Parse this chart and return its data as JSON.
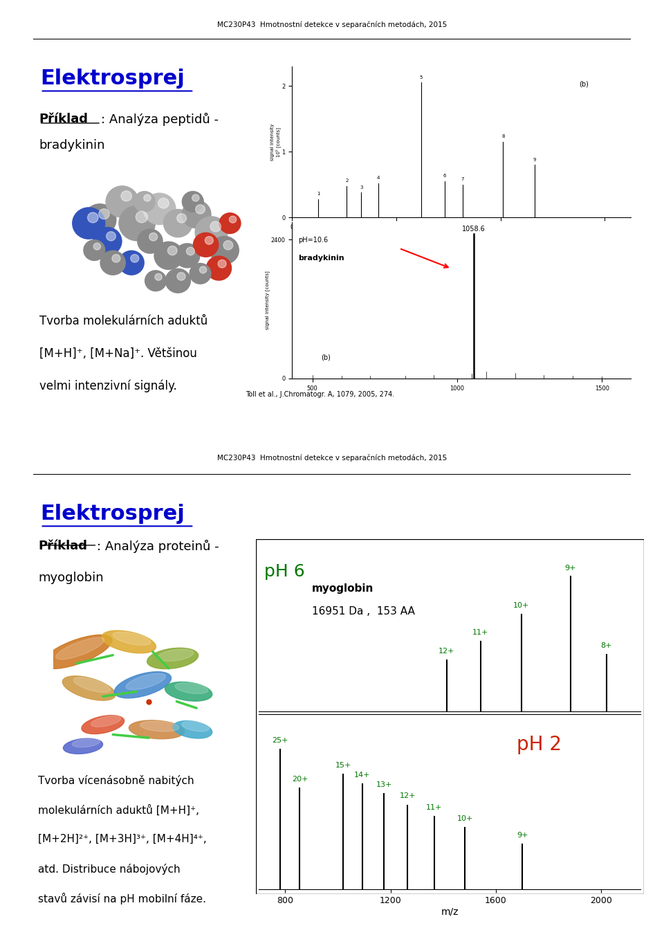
{
  "header_text": "MC230P43  Hmotnostní detekce v separačních metodách, 2015",
  "page_bg": "#ffffff",
  "slide1": {
    "title": "Elektrosprej",
    "title_color": "#0000cc",
    "example_label": "Příklad",
    "example_rest": ": Analýza peptidů -",
    "example_line2": "bradykinin",
    "body_lines": [
      "Tvorba molekulárních aduktů",
      "[M+H]⁺, [M+Na]⁺. Většinou",
      "velmi intenzivní signály."
    ],
    "cite": "Toll et al., J.Chromatogr. A, 1079, 2005, 274."
  },
  "slide2": {
    "title": "Elektrosprej",
    "title_color": "#0000cc",
    "example_label": "Příklad",
    "example_rest": ": Analýza proteinů -",
    "example_line2": "myoglobin",
    "body_lines": [
      "Tvorba vícenásobně nabitých",
      "molekulárních aduktů [M+H]⁺,",
      "[M+2H]²⁺, [M+3H]³⁺, [M+4H]⁴⁺,",
      "atd. Distribuce nábojových",
      "stavů závisí na pH mobilní fáze."
    ],
    "ph6_label": "pH 6",
    "ph2_label": "pH 2",
    "myoglobin_label": "myoglobin",
    "mw_label": "16951 Da ,  153 AA",
    "mz_label": "m/z",
    "mz_ticks": [
      800,
      1200,
      1600,
      2000
    ],
    "ph6_peaks": [
      [
        1883,
        1.0,
        "9+"
      ],
      [
        1696,
        0.72,
        "10+"
      ],
      [
        1542,
        0.52,
        "11+"
      ],
      [
        1413,
        0.38,
        "12+"
      ],
      [
        2020,
        0.42,
        "8+"
      ]
    ],
    "ph2_peaks": [
      [
        780,
        1.0,
        "25+"
      ],
      [
        855,
        0.72,
        "20+"
      ],
      [
        1020,
        0.82,
        "15+"
      ],
      [
        1093,
        0.75,
        "14+"
      ],
      [
        1175,
        0.68,
        "13+"
      ],
      [
        1265,
        0.6,
        "12+"
      ],
      [
        1365,
        0.52,
        "11+"
      ],
      [
        1483,
        0.44,
        "10+"
      ],
      [
        1700,
        0.32,
        "9+"
      ]
    ]
  }
}
